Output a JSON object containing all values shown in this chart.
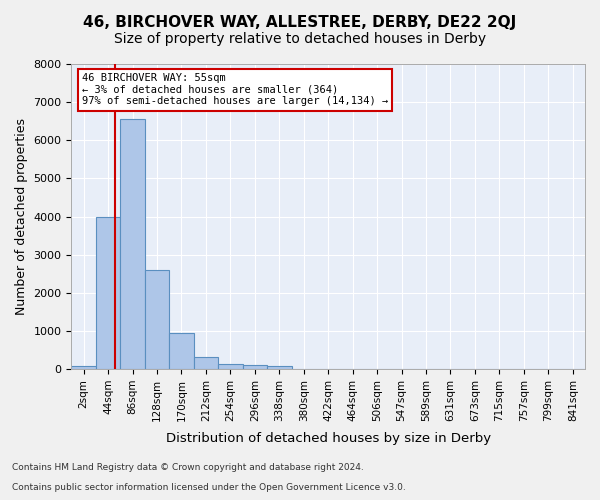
{
  "title": "46, BIRCHOVER WAY, ALLESTREE, DERBY, DE22 2QJ",
  "subtitle": "Size of property relative to detached houses in Derby",
  "xlabel": "Distribution of detached houses by size in Derby",
  "ylabel": "Number of detached properties",
  "footer_line1": "Contains HM Land Registry data © Crown copyright and database right 2024.",
  "footer_line2": "Contains public sector information licensed under the Open Government Licence v3.0.",
  "bin_labels": [
    "2sqm",
    "44sqm",
    "86sqm",
    "128sqm",
    "170sqm",
    "212sqm",
    "254sqm",
    "296sqm",
    "338sqm",
    "380sqm",
    "422sqm",
    "464sqm",
    "506sqm",
    "547sqm",
    "589sqm",
    "631sqm",
    "673sqm",
    "715sqm",
    "757sqm",
    "799sqm",
    "841sqm"
  ],
  "bar_values": [
    80,
    4000,
    6550,
    2600,
    950,
    310,
    130,
    110,
    90,
    0,
    0,
    0,
    0,
    0,
    0,
    0,
    0,
    0,
    0,
    0,
    0
  ],
  "bar_color": "#aec6e8",
  "bar_edge_color": "#5a8fc0",
  "property_line_x": 1.3,
  "property_line_color": "#cc0000",
  "annotation_text": "46 BIRCHOVER WAY: 55sqm\n← 3% of detached houses are smaller (364)\n97% of semi-detached houses are larger (14,134) →",
  "annotation_box_color": "#ffffff",
  "annotation_box_edge": "#cc0000",
  "ylim": [
    0,
    8000
  ],
  "yticks": [
    0,
    1000,
    2000,
    3000,
    4000,
    5000,
    6000,
    7000,
    8000
  ],
  "background_color": "#e8eef8",
  "grid_color": "#ffffff",
  "fig_bg_color": "#f0f0f0",
  "title_fontsize": 11,
  "subtitle_fontsize": 10,
  "axis_label_fontsize": 9,
  "tick_fontsize": 7.5
}
